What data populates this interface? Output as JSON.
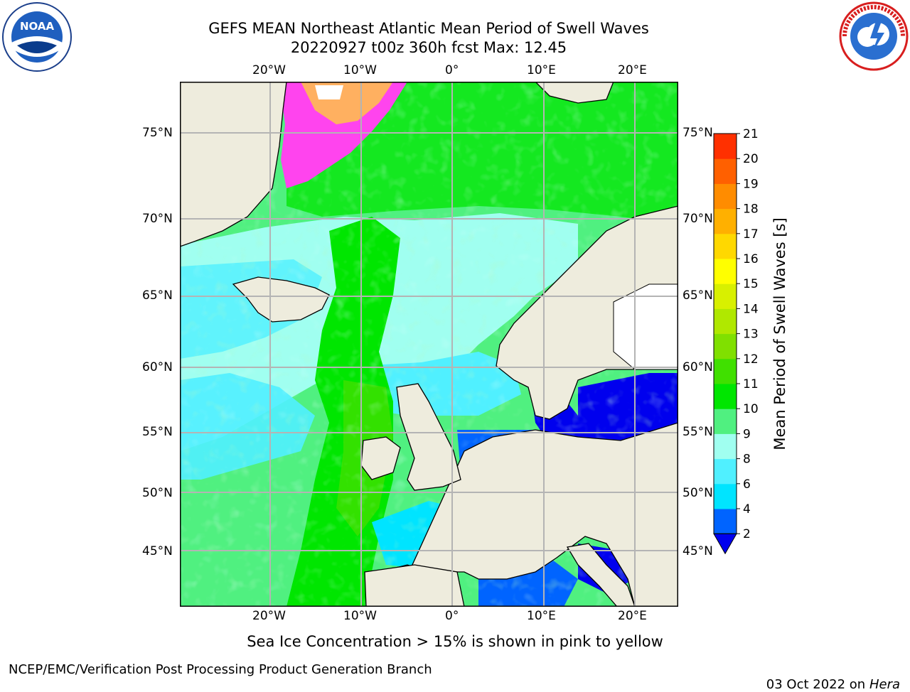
{
  "titles": {
    "line1": "GEFS MEAN Northeast Atlantic Mean Period of Swell Waves",
    "line2": "20220927 t00z 360h fcst   Max: 12.45"
  },
  "logos": {
    "left": "NOAA",
    "left_ring": "NATIONAL OCEANIC AND ATMOSPHERIC ADMINISTRATION · U.S. DEPARTMENT OF COMMERCE",
    "right_ring": "NATIONAL WEATHER SERVICE"
  },
  "map": {
    "lon_labels": [
      "20°W",
      "10°W",
      "0°",
      "10°E",
      "20°E"
    ],
    "lat_labels": [
      "75°N",
      "70°N",
      "65°N",
      "60°N",
      "55°N",
      "50°N",
      "45°N"
    ],
    "colors": {
      "land": "#eeecdd",
      "grid": "#b4b4b4",
      "ice_pink": "#ff44ee",
      "ice_orange": "#ffb060"
    }
  },
  "colorbar": {
    "label": "Mean Period of Swell Waves [s]",
    "ticks": [
      "2",
      "4",
      "6",
      "8",
      "9",
      "10",
      "11",
      "12",
      "13",
      "14",
      "15",
      "16",
      "17",
      "18",
      "19",
      "20",
      "21"
    ],
    "colors": [
      "#0064ff",
      "#00e4ff",
      "#50f0ff",
      "#a0fff0",
      "#50f080",
      "#00e600",
      "#40e000",
      "#80e000",
      "#b0e800",
      "#d8f000",
      "#ffff00",
      "#ffd800",
      "#ffb000",
      "#ff8c00",
      "#ff6000",
      "#ff3000",
      "#ff0000"
    ],
    "under_color": "#0000ee"
  },
  "notes": {
    "ice": "Sea Ice Concentration > 15% is shown in pink to yellow"
  },
  "footer": {
    "left": "NCEP/EMC/Verification Post Processing Product Generation Branch",
    "date": "03 Oct 2022 on ",
    "machine": "Hera"
  }
}
